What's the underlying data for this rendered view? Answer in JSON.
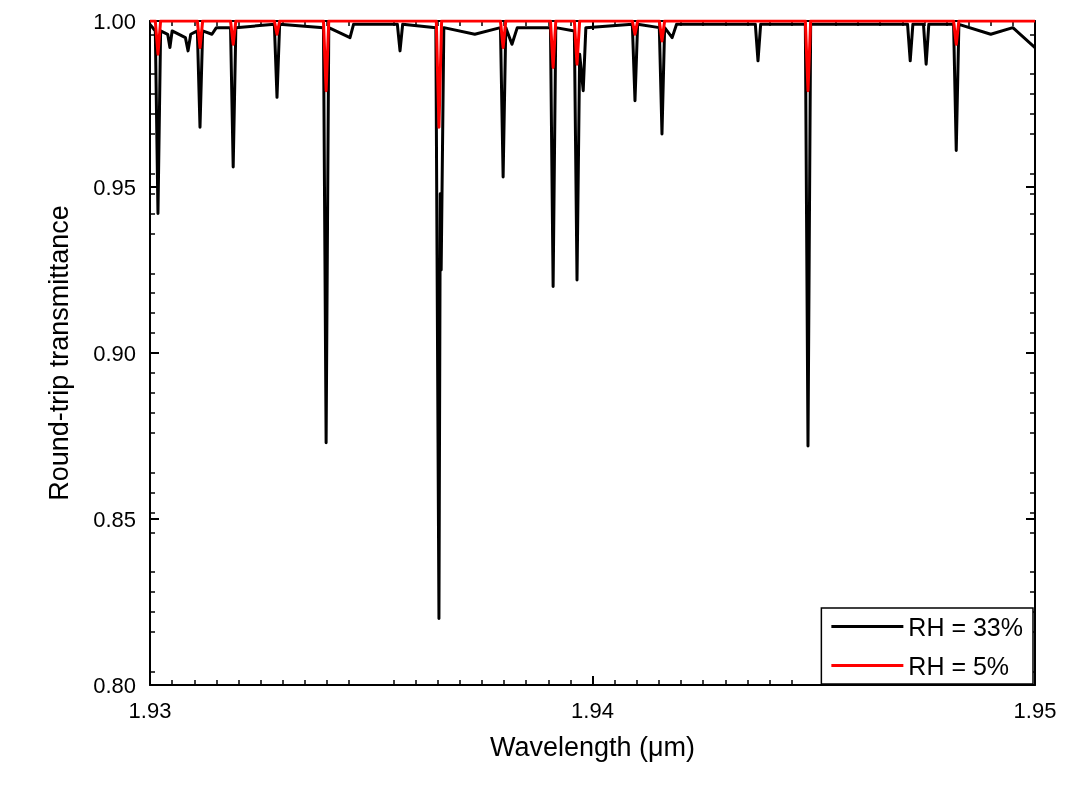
{
  "chart_data": {
    "type": "line",
    "xlabel": "Wavelength (μm)",
    "ylabel": "Round-trip transmittance",
    "xlim": [
      1.93,
      1.95
    ],
    "xticks": [
      1.93,
      1.94,
      1.95
    ],
    "ylim": [
      0.8,
      1.0
    ],
    "yticks": [
      {
        "value": 0.8,
        "label": "0.80"
      },
      {
        "value": 0.85,
        "label": "0.85"
      },
      {
        "value": 0.9,
        "label": "0.90"
      },
      {
        "value": 0.95,
        "label": "0.95"
      },
      {
        "value": 1.0,
        "label": "1.00"
      }
    ],
    "grid": false,
    "legend": "bottom right",
    "marker": "none",
    "line_style": "solid",
    "series": [
      {
        "name": "RH = 33%",
        "color": "#000000",
        "x": [
          1.93,
          1.93012,
          1.93018,
          1.93024,
          1.9304,
          1.93045,
          1.9305,
          1.9308,
          1.93086,
          1.93092,
          1.93107,
          1.93113,
          1.93119,
          1.9314,
          1.9315,
          1.93182,
          1.93188,
          1.93194,
          1.93281,
          1.93287,
          1.93293,
          1.93392,
          1.93398,
          1.93404,
          1.93452,
          1.9346,
          1.93559,
          1.93565,
          1.93571,
          1.93646,
          1.93653,
          1.93656,
          1.93658,
          1.93664,
          1.93734,
          1.93792,
          1.93798,
          1.93804,
          1.93818,
          1.9383,
          1.93905,
          1.93911,
          1.93917,
          1.93959,
          1.93965,
          1.93971,
          1.93979,
          1.93985,
          1.9409,
          1.94096,
          1.94102,
          1.94151,
          1.94157,
          1.94163,
          1.9418,
          1.9419,
          1.94368,
          1.94374,
          1.9438,
          1.94481,
          1.94487,
          1.94493,
          1.94712,
          1.94718,
          1.94724,
          1.94748,
          1.94754,
          1.9476,
          1.94816,
          1.94822,
          1.94828,
          1.949,
          1.9495,
          1.95
        ],
        "values": [
          0.999,
          0.997,
          0.942,
          0.997,
          0.996,
          0.992,
          0.997,
          0.995,
          0.991,
          0.996,
          0.997,
          0.968,
          0.997,
          0.996,
          0.998,
          0.998,
          0.956,
          0.998,
          0.999,
          0.977,
          0.999,
          0.998,
          0.873,
          0.998,
          0.995,
          0.999,
          0.999,
          0.991,
          0.999,
          0.998,
          0.82,
          0.948,
          0.925,
          0.998,
          0.996,
          0.998,
          0.953,
          0.998,
          0.993,
          0.998,
          0.998,
          0.92,
          0.998,
          0.997,
          0.922,
          0.99,
          0.979,
          0.998,
          0.999,
          0.976,
          0.999,
          0.998,
          0.966,
          0.998,
          0.995,
          0.999,
          0.999,
          0.988,
          0.999,
          0.999,
          0.872,
          0.999,
          0.999,
          0.988,
          0.999,
          0.999,
          0.987,
          0.999,
          0.999,
          0.961,
          0.999,
          0.996,
          0.998,
          0.992
        ]
      },
      {
        "name": "RH = 5%",
        "color": "#ff0000",
        "x": [
          1.93,
          1.93012,
          1.93018,
          1.93024,
          1.93107,
          1.93113,
          1.93119,
          1.93182,
          1.93188,
          1.93194,
          1.93281,
          1.93287,
          1.93293,
          1.93392,
          1.93398,
          1.93404,
          1.93647,
          1.93653,
          1.93659,
          1.93792,
          1.93798,
          1.93804,
          1.93905,
          1.93911,
          1.93917,
          1.93959,
          1.93965,
          1.93971,
          1.9409,
          1.94096,
          1.94102,
          1.94151,
          1.94157,
          1.94163,
          1.94481,
          1.94487,
          1.94493,
          1.94816,
          1.94822,
          1.94828,
          1.95
        ],
        "values": [
          1.0,
          1.0,
          0.99,
          1.0,
          1.0,
          0.992,
          1.0,
          1.0,
          0.993,
          1.0,
          1.0,
          0.996,
          1.0,
          1.0,
          0.979,
          1.0,
          1.0,
          0.968,
          1.0,
          1.0,
          0.992,
          1.0,
          1.0,
          0.986,
          1.0,
          1.0,
          0.987,
          1.0,
          1.0,
          0.996,
          1.0,
          1.0,
          0.994,
          1.0,
          1.0,
          0.979,
          1.0,
          1.0,
          0.993,
          1.0,
          1.0
        ]
      }
    ]
  }
}
